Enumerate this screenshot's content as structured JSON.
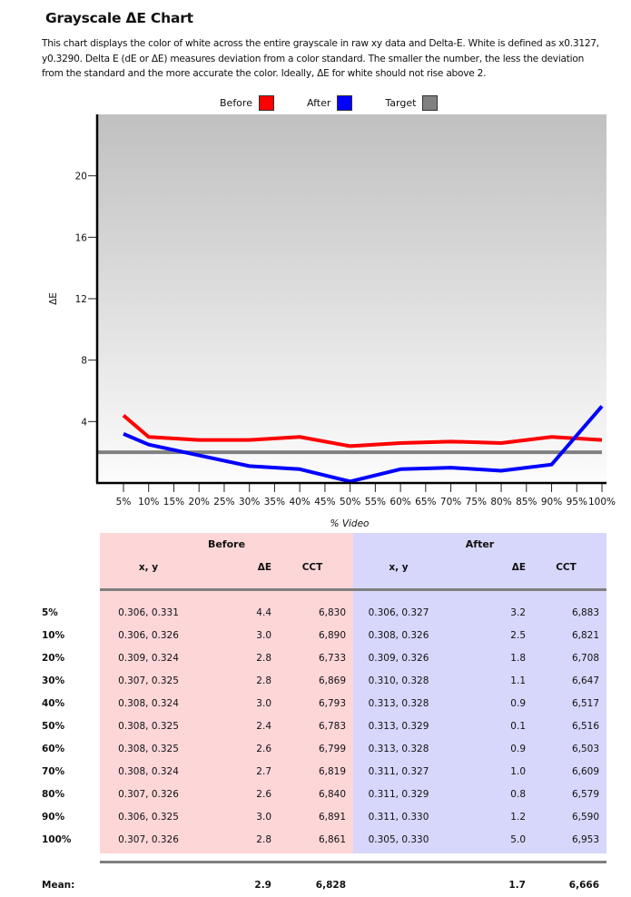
{
  "header": {
    "title": "Grayscale ΔE Chart",
    "description": "This chart displays the color of white across the entire grayscale in raw xy data and Delta-E. White is defined as x0.3127, y0.3290. Delta E (dE or ΔE) measures deviation from a color standard. The smaller the number, the less the deviation from the standard and the more accurate the color. Ideally, ΔE for white should not rise above 2."
  },
  "legend": {
    "items": [
      {
        "label": "Before",
        "color": "#ff0000"
      },
      {
        "label": "After",
        "color": "#0000ff"
      },
      {
        "label": "Target",
        "color": "#808080"
      }
    ]
  },
  "chart_data": {
    "type": "line",
    "title": "Grayscale ΔE Chart",
    "xlabel": "% Video",
    "ylabel": "ΔE",
    "x_ticks": [
      "5%",
      "10%",
      "15%",
      "20%",
      "25%",
      "30%",
      "35%",
      "40%",
      "45%",
      "50%",
      "55%",
      "60%",
      "65%",
      "70%",
      "75%",
      "80%",
      "85%",
      "90%",
      "95%",
      "100%"
    ],
    "y_ticks": [
      4,
      8,
      12,
      16,
      20
    ],
    "xlim": [
      0,
      100
    ],
    "ylim": [
      0,
      24
    ],
    "grid": false,
    "legend_position": "top-center",
    "series": [
      {
        "name": "Before",
        "color": "#ff0000",
        "x": [
          5,
          10,
          20,
          30,
          40,
          50,
          60,
          70,
          80,
          90,
          100
        ],
        "values": [
          4.4,
          3.0,
          2.8,
          2.8,
          3.0,
          2.4,
          2.6,
          2.7,
          2.6,
          3.0,
          2.8
        ]
      },
      {
        "name": "After",
        "color": "#0000ff",
        "x": [
          5,
          10,
          20,
          30,
          40,
          50,
          60,
          70,
          80,
          90,
          100
        ],
        "values": [
          3.2,
          2.5,
          1.8,
          1.1,
          0.9,
          0.1,
          0.9,
          1.0,
          0.8,
          1.2,
          5.0
        ]
      },
      {
        "name": "Target",
        "color": "#808080",
        "x": [
          0,
          100
        ],
        "values": [
          2,
          2
        ]
      }
    ]
  },
  "table": {
    "group_headers": {
      "before": "Before",
      "after": "After"
    },
    "column_headers": {
      "xy": "x, y",
      "de": "ΔE",
      "cct": "CCT"
    },
    "rows": [
      {
        "label": "5%",
        "before": {
          "xy": "0.306, 0.331",
          "de": "4.4",
          "cct": "6,830"
        },
        "after": {
          "xy": "0.306, 0.327",
          "de": "3.2",
          "cct": "6,883"
        }
      },
      {
        "label": "10%",
        "before": {
          "xy": "0.306, 0.326",
          "de": "3.0",
          "cct": "6,890"
        },
        "after": {
          "xy": "0.308, 0.326",
          "de": "2.5",
          "cct": "6,821"
        }
      },
      {
        "label": "20%",
        "before": {
          "xy": "0.309, 0.324",
          "de": "2.8",
          "cct": "6,733"
        },
        "after": {
          "xy": "0.309, 0.326",
          "de": "1.8",
          "cct": "6,708"
        }
      },
      {
        "label": "30%",
        "before": {
          "xy": "0.307, 0.325",
          "de": "2.8",
          "cct": "6,869"
        },
        "after": {
          "xy": "0.310, 0.328",
          "de": "1.1",
          "cct": "6,647"
        }
      },
      {
        "label": "40%",
        "before": {
          "xy": "0.308, 0.324",
          "de": "3.0",
          "cct": "6,793"
        },
        "after": {
          "xy": "0.313, 0.328",
          "de": "0.9",
          "cct": "6,517"
        }
      },
      {
        "label": "50%",
        "before": {
          "xy": "0.308, 0.325",
          "de": "2.4",
          "cct": "6,783"
        },
        "after": {
          "xy": "0.313, 0.329",
          "de": "0.1",
          "cct": "6,516"
        }
      },
      {
        "label": "60%",
        "before": {
          "xy": "0.308, 0.325",
          "de": "2.6",
          "cct": "6,799"
        },
        "after": {
          "xy": "0.313, 0.328",
          "de": "0.9",
          "cct": "6,503"
        }
      },
      {
        "label": "70%",
        "before": {
          "xy": "0.308, 0.324",
          "de": "2.7",
          "cct": "6,819"
        },
        "after": {
          "xy": "0.311, 0.327",
          "de": "1.0",
          "cct": "6,609"
        }
      },
      {
        "label": "80%",
        "before": {
          "xy": "0.307, 0.326",
          "de": "2.6",
          "cct": "6,840"
        },
        "after": {
          "xy": "0.311, 0.329",
          "de": "0.8",
          "cct": "6,579"
        }
      },
      {
        "label": "90%",
        "before": {
          "xy": "0.306, 0.325",
          "de": "3.0",
          "cct": "6,891"
        },
        "after": {
          "xy": "0.311, 0.330",
          "de": "1.2",
          "cct": "6,590"
        }
      },
      {
        "label": "100%",
        "before": {
          "xy": "0.307, 0.326",
          "de": "2.8",
          "cct": "6,861"
        },
        "after": {
          "xy": "0.305, 0.330",
          "de": "5.0",
          "cct": "6,953"
        }
      }
    ],
    "mean": {
      "label": "Mean:",
      "before": {
        "de": "2.9",
        "cct": "6,828"
      },
      "after": {
        "de": "1.7",
        "cct": "6,666"
      }
    }
  }
}
